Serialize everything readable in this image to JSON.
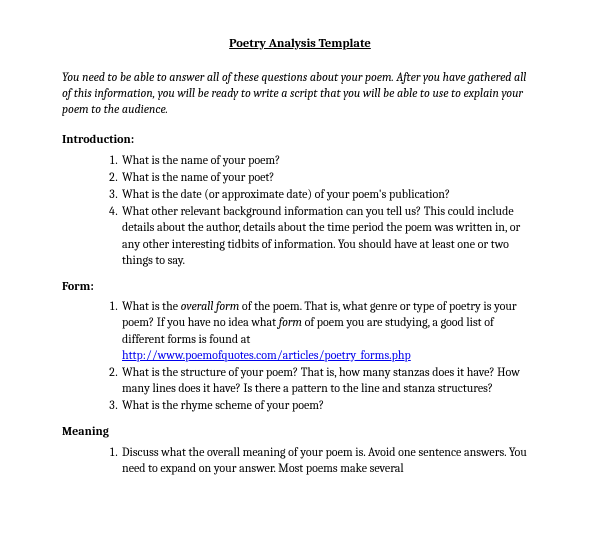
{
  "title": "Poetry Analysis Template",
  "intro": "You need to be able to answer all of these questions about your poem.  After you have gathered all of this information, you will be ready to write a script that you will be able to use to explain your poem to the audience.",
  "sections": {
    "introduction": {
      "heading": "Introduction:",
      "items": [
        "What is the name of your poem?",
        "What is the name of your poet?",
        "What is the date (or approximate date) of your poem's publication?",
        "What other relevant background information can you tell us?  This could include details about the author, details about the time period the poem was written in, or any other interesting tidbits of information.  You should have at least one or two things to say."
      ]
    },
    "form": {
      "heading": "Form:",
      "item1_pre": "What is the ",
      "item1_em": "overall form",
      "item1_mid": " of the poem.  That is, what genre or type of poetry is your poem?  If you have no idea what ",
      "item1_em2": "form",
      "item1_post": " of poem you are studying, a good list of different forms is found at ",
      "item1_link": "http://www.poemofquotes.com/articles/poetry_forms.php",
      "item2": "What is the structure of your poem?  That is, how many stanzas does it have?  How many lines does it have?  Is there a pattern to the line and stanza structures?",
      "item3": "What is the rhyme scheme of your poem?"
    },
    "meaning": {
      "heading": "Meaning",
      "item1": "Discuss what the overall meaning of your poem is.  Avoid one sentence answers.  You need to expand on your answer.  Most poems make several"
    }
  },
  "colors": {
    "background": "#ffffff",
    "text": "#000000",
    "link": "#0000EE"
  }
}
